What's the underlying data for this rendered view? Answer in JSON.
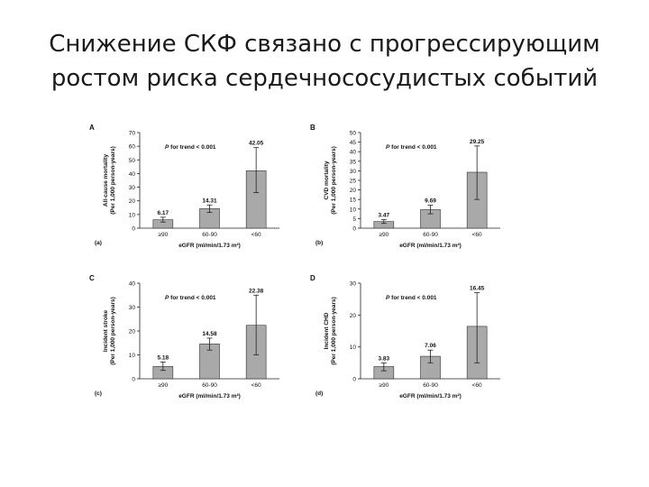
{
  "slide": {
    "title_line1": "Снижение СКФ связано с прогрессирующим",
    "title_line2": "ростом риска сердечнососудистых событий"
  },
  "chart_data": [
    {
      "type": "bar",
      "panel_letter": "A",
      "sub_label": "(a)",
      "categories": [
        "≥90",
        "60-90",
        "<60"
      ],
      "values": [
        6.17,
        14.31,
        42.05
      ],
      "value_labels": [
        "6.17",
        "14.31",
        "42.05"
      ],
      "error_low": [
        4.5,
        11.5,
        26
      ],
      "error_high": [
        8,
        17,
        59
      ],
      "annotation": "P for trend < 0.001",
      "xlabel": "eGFR (ml/min/1.73 m²)",
      "ylabel_line1": "All-cause mortality",
      "ylabel_line2": "(Per 1,000 person-years)",
      "ylim": [
        0,
        70
      ],
      "yticks": [
        0,
        10,
        20,
        30,
        40,
        50,
        60,
        70
      ],
      "bar_color": "#a9a9a9"
    },
    {
      "type": "bar",
      "panel_letter": "B",
      "sub_label": "(b)",
      "categories": [
        "≥90",
        "60-90",
        "<60"
      ],
      "values": [
        3.47,
        9.69,
        29.25
      ],
      "value_labels": [
        "3.47",
        "9.69",
        "29.25"
      ],
      "error_low": [
        2.5,
        7.5,
        15
      ],
      "error_high": [
        4.5,
        12,
        43
      ],
      "annotation": "P for trend < 0.001",
      "xlabel": "eGFR (ml/min/1.73 m²)",
      "ylabel_line1": "CVD mortality",
      "ylabel_line2": "(Per 1,000 person-years)",
      "ylim": [
        0,
        50
      ],
      "yticks": [
        0,
        5,
        10,
        15,
        20,
        25,
        30,
        35,
        40,
        45,
        50
      ],
      "bar_color": "#a9a9a9"
    },
    {
      "type": "bar",
      "panel_letter": "C",
      "sub_label": "(c)",
      "categories": [
        "≥90",
        "60-90",
        "<60"
      ],
      "values": [
        5.18,
        14.58,
        22.38
      ],
      "value_labels": [
        "5.18",
        "14.58",
        "22.38"
      ],
      "error_low": [
        3.5,
        12,
        10
      ],
      "error_high": [
        7,
        17,
        35
      ],
      "annotation": "P for trend < 0.001",
      "xlabel": "eGFR (ml/min/1.73 m²)",
      "ylabel_line1": "Incident stroke",
      "ylabel_line2": "(Per 1,000 person-years)",
      "ylim": [
        0,
        40
      ],
      "yticks": [
        0,
        10,
        20,
        30,
        40
      ],
      "bar_color": "#a9a9a9"
    },
    {
      "type": "bar",
      "panel_letter": "D",
      "sub_label": "(d)",
      "categories": [
        "≥90",
        "60-90",
        "<60"
      ],
      "values": [
        3.83,
        7.06,
        16.45
      ],
      "value_labels": [
        "3.83",
        "7.06",
        "16.45"
      ],
      "error_low": [
        2.5,
        5,
        5
      ],
      "error_high": [
        5,
        9,
        27
      ],
      "annotation": "P for trend < 0.001",
      "xlabel": "eGFR (ml/min/1.73 m²)",
      "ylabel_line1": "Incident CHD",
      "ylabel_line2": "(Per 1,000 person-years)",
      "ylim": [
        0,
        30
      ],
      "yticks": [
        0,
        10,
        20,
        30
      ],
      "bar_color": "#a9a9a9"
    }
  ]
}
